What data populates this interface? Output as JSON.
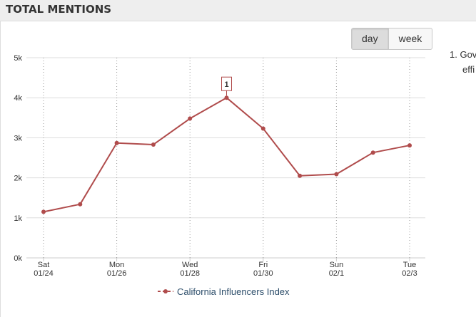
{
  "header": {
    "title": "TOTAL MENTIONS"
  },
  "toggle": {
    "day_label": "day",
    "week_label": "week",
    "selected": "day"
  },
  "side_list": {
    "item1_number": "1.",
    "item1_line1": "Gov",
    "item1_line2": "effi"
  },
  "colors": {
    "series": "#b04c4c",
    "grid": "#dddddd",
    "header_bg": "#eeeeee",
    "legend_text": "#2c4d6a"
  },
  "chart_data": {
    "type": "line",
    "title": "",
    "xlabel": "",
    "ylabel": "",
    "ylim": [
      0,
      5000
    ],
    "y_ticks": [
      "0k",
      "1k",
      "2k",
      "3k",
      "4k",
      "5k"
    ],
    "y_tick_values": [
      0,
      1000,
      2000,
      3000,
      4000,
      5000
    ],
    "x": [
      "01/24",
      "01/25",
      "01/26",
      "01/27",
      "01/28",
      "01/29",
      "01/30",
      "01/31",
      "02/1",
      "02/2",
      "02/3"
    ],
    "x_tick_labels": [
      {
        "index": 0,
        "day": "Sat",
        "date": "01/24"
      },
      {
        "index": 2,
        "day": "Mon",
        "date": "01/26"
      },
      {
        "index": 4,
        "day": "Wed",
        "date": "01/28"
      },
      {
        "index": 6,
        "day": "Fri",
        "date": "01/30"
      },
      {
        "index": 8,
        "day": "Sun",
        "date": "02/1"
      },
      {
        "index": 10,
        "day": "Tue",
        "date": "02/3"
      }
    ],
    "series": [
      {
        "name": "California Influencers Index",
        "values": [
          1150,
          1340,
          2870,
          2830,
          3480,
          4000,
          3230,
          2050,
          2090,
          2630,
          2810
        ]
      }
    ],
    "annotations": [
      {
        "index": 5,
        "label": "1"
      }
    ],
    "grid": true,
    "legend": "bottom-center"
  }
}
